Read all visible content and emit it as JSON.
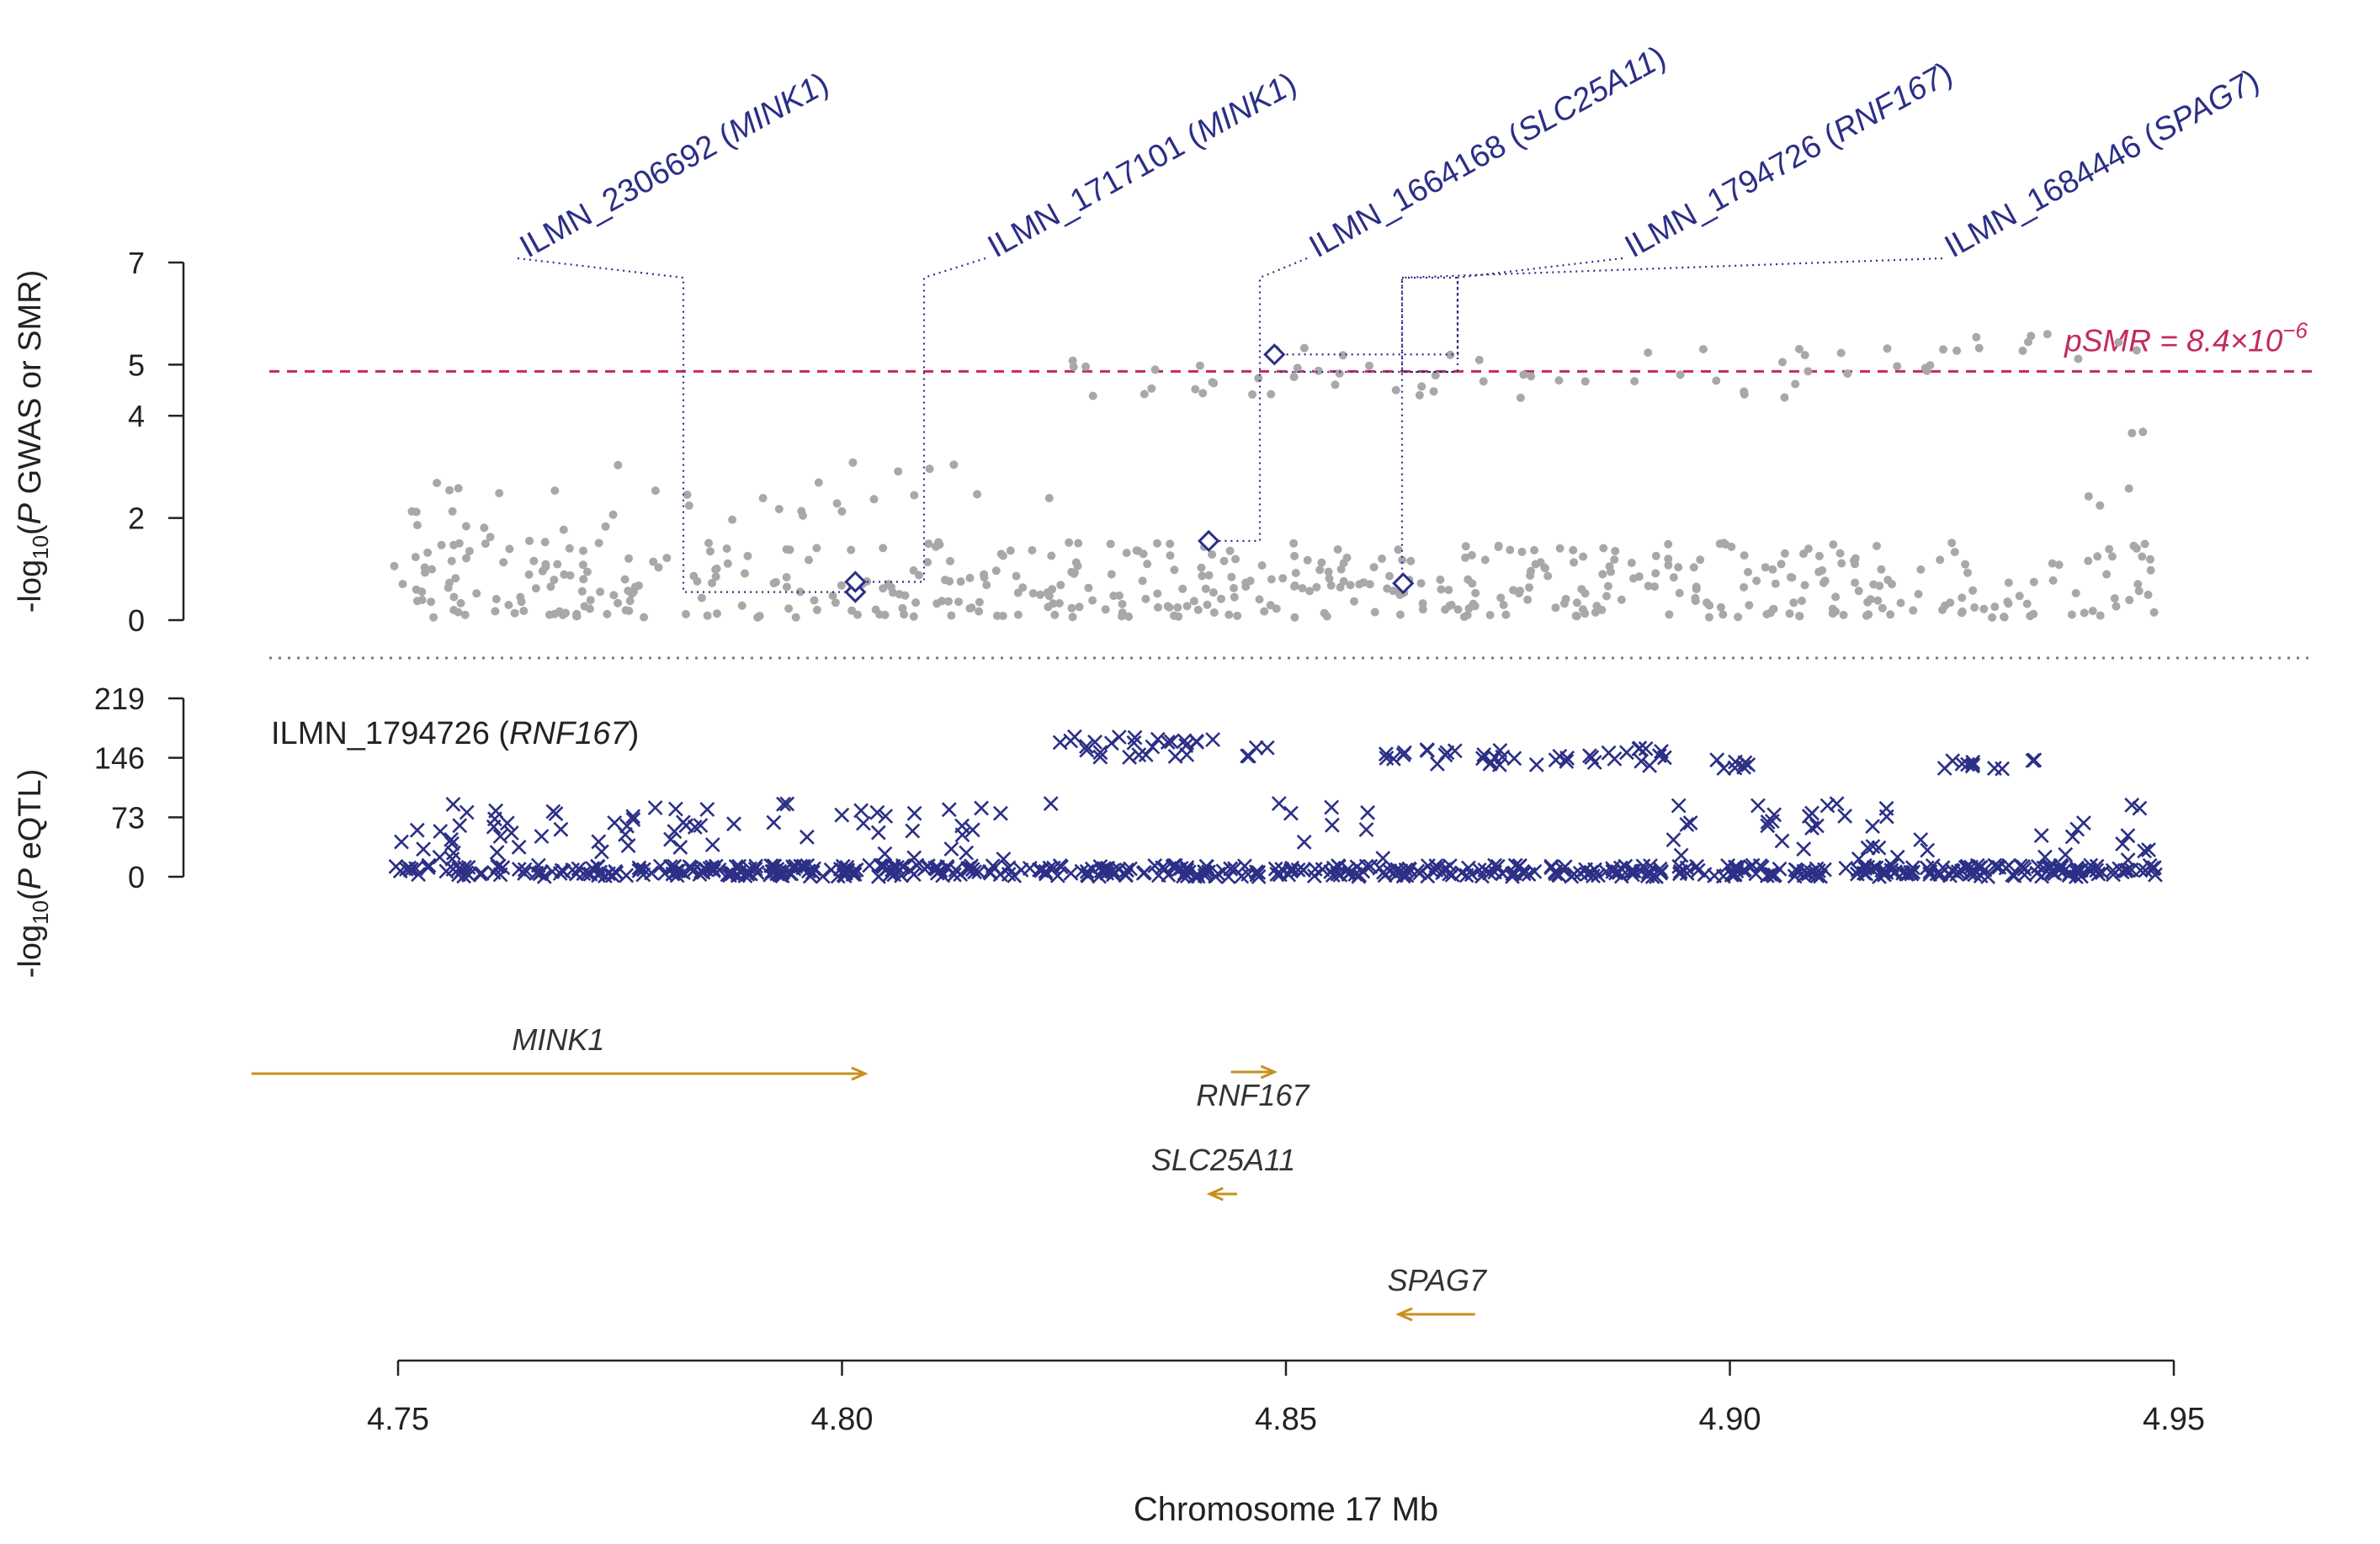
{
  "chart_data": {
    "type": "scatter",
    "xlabel": "Chromosome 17 Mb",
    "xlim": [
      4.75,
      4.95
    ],
    "xticks": [
      "4.75",
      "4.80",
      "4.85",
      "4.90",
      "4.95"
    ],
    "top_panel": {
      "ylabel_parts": {
        "prefix": "-log",
        "sub": "10",
        "mid": "(",
        "italic": "P",
        "suffix": " GWAS or SMR)"
      },
      "ylim": [
        0,
        7
      ],
      "yticks": [
        "0",
        "2",
        "4",
        "5",
        "7"
      ],
      "threshold": {
        "value": 4.87,
        "label_prefix": "pSMR = 8.4×10",
        "label_exponent": "−6",
        "color": "#c42b5a"
      },
      "gwas_color": "#a8a8a8",
      "probe_color": "#2b2f86",
      "probes": [
        {
          "name": "ILMN_2306692",
          "gene": "MINK1",
          "x": 4.8015,
          "y": 0.55
        },
        {
          "name": "ILMN_1717101",
          "gene": "MINK1",
          "x": 4.8015,
          "y": 0.75
        },
        {
          "name": "ILMN_1664168",
          "gene": "SLC25A11",
          "x": 4.8413,
          "y": 1.55
        },
        {
          "name": "ILMN_1794726",
          "gene": "RNF167",
          "x": 4.8487,
          "y": 5.2
        },
        {
          "name": "ILMN_1684446",
          "gene": "SPAG7",
          "x": 4.8632,
          "y": 0.72
        }
      ]
    },
    "bottom_panel": {
      "ylabel_parts": {
        "prefix": "-log",
        "sub": "10",
        "mid": "(",
        "italic": "P",
        "suffix": " eQTL)"
      },
      "ylim": [
        0,
        219
      ],
      "yticks": [
        "0",
        "73",
        "146",
        "219"
      ],
      "probe_label": {
        "name": "ILMN_1794726 (",
        "gene": "RNF167",
        "close": ")"
      },
      "marker_color": "#2b2f86"
    },
    "genes": [
      {
        "name": "MINK1",
        "start": 4.7335,
        "end": 4.8026,
        "strand": "+"
      },
      {
        "name": "RNF167",
        "start": 4.8438,
        "end": 4.8487,
        "strand": "+"
      },
      {
        "name": "SLC25A11",
        "start": 4.8414,
        "end": 4.8445,
        "strand": "-"
      },
      {
        "name": "SPAG7",
        "start": 4.8627,
        "end": 4.8713,
        "strand": "-"
      }
    ],
    "gene_color": "#c8901e"
  }
}
